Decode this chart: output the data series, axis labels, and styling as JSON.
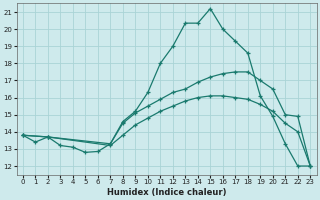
{
  "xlabel": "Humidex (Indice chaleur)",
  "bg_color": "#ceeaec",
  "grid_color": "#aad4d6",
  "line_color": "#1a7a6e",
  "xlim": [
    -0.5,
    23.5
  ],
  "ylim": [
    11.5,
    21.5
  ],
  "xticks": [
    0,
    1,
    2,
    3,
    4,
    5,
    6,
    7,
    8,
    9,
    10,
    11,
    12,
    13,
    14,
    15,
    16,
    17,
    18,
    19,
    20,
    21,
    22,
    23
  ],
  "yticks": [
    12,
    13,
    14,
    15,
    16,
    17,
    18,
    19,
    20,
    21
  ],
  "line1_x": [
    0,
    1,
    2,
    3,
    4,
    5,
    6,
    7,
    8,
    9,
    10,
    11,
    12,
    13,
    14,
    15,
    16,
    17,
    18,
    19,
    20,
    21,
    22,
    23
  ],
  "line1_y": [
    13.8,
    13.4,
    13.7,
    13.2,
    13.1,
    12.8,
    12.85,
    13.3,
    14.6,
    15.2,
    16.3,
    18.0,
    19.0,
    20.35,
    20.35,
    21.2,
    20.0,
    19.3,
    18.6,
    16.1,
    14.9,
    13.3,
    12.0,
    12.0
  ],
  "line2_x": [
    0,
    2,
    7,
    8,
    9,
    10,
    11,
    12,
    13,
    14,
    15,
    16,
    17,
    18,
    19,
    20,
    21,
    22,
    23
  ],
  "line2_y": [
    13.8,
    13.7,
    13.3,
    14.5,
    15.1,
    15.5,
    15.9,
    16.3,
    16.5,
    16.9,
    17.2,
    17.4,
    17.5,
    17.5,
    17.0,
    16.5,
    15.0,
    14.9,
    12.0
  ],
  "line3_x": [
    0,
    2,
    7,
    8,
    9,
    10,
    11,
    12,
    13,
    14,
    15,
    16,
    17,
    18,
    19,
    20,
    21,
    22,
    23
  ],
  "line3_y": [
    13.8,
    13.7,
    13.2,
    13.8,
    14.4,
    14.8,
    15.2,
    15.5,
    15.8,
    16.0,
    16.1,
    16.1,
    16.0,
    15.9,
    15.6,
    15.2,
    14.5,
    14.0,
    12.0
  ]
}
